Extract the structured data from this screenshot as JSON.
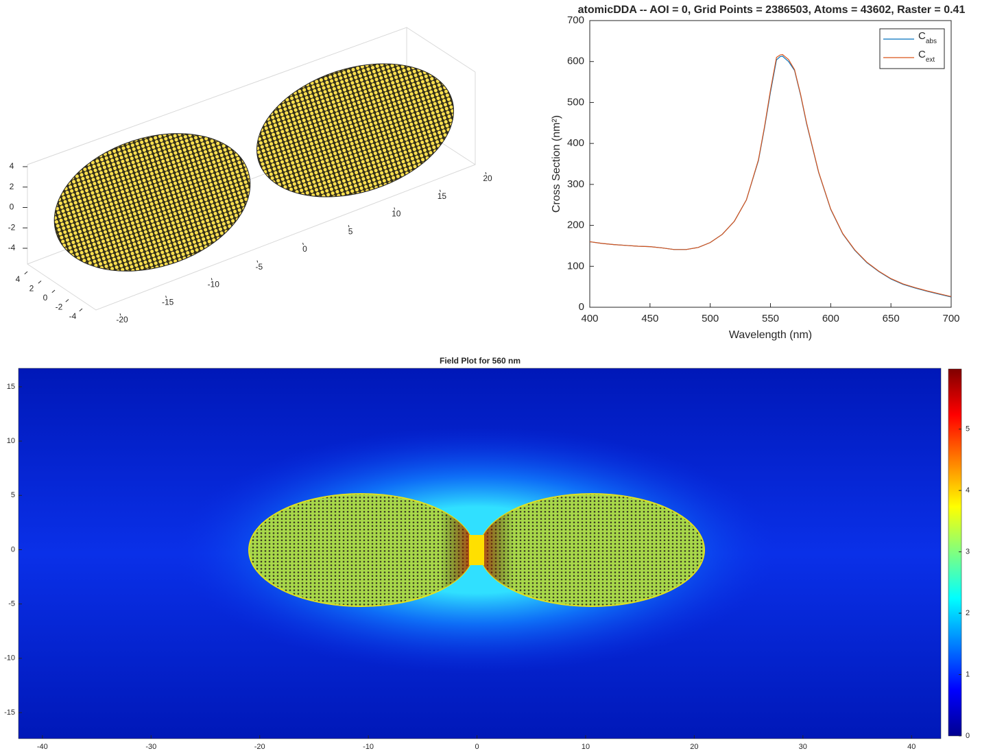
{
  "chart_data": [
    {
      "type": "scatter3d",
      "color": "#ffe14d",
      "xlim": [
        -20,
        20
      ],
      "xticks": [
        -20,
        -15,
        -10,
        -5,
        0,
        5,
        10,
        15,
        20
      ],
      "ylim": [
        -4,
        4
      ],
      "yticks": [
        -4,
        -2,
        0,
        2,
        4
      ],
      "zlim": [
        -4,
        4
      ],
      "zticks": [
        -4,
        -2,
        0,
        2,
        4
      ]
    },
    {
      "type": "line",
      "title": "atomicDDA  -- AOI = 0, Grid Points = 2386503, Atoms = 43602, Raster = 0.41",
      "x_label": "Wavelength (nm)",
      "y_label": "Cross Section (nm²)",
      "x": [
        400,
        410,
        420,
        430,
        440,
        450,
        460,
        470,
        480,
        490,
        500,
        510,
        520,
        530,
        540,
        545,
        550,
        555,
        558,
        560,
        565,
        570,
        575,
        580,
        590,
        600,
        610,
        620,
        630,
        640,
        650,
        660,
        670,
        680,
        690,
        700
      ],
      "series": [
        {
          "name": "Cabs",
          "color": "#0072bd",
          "values": [
            160,
            156,
            153,
            151,
            149,
            148,
            145,
            141,
            141,
            146,
            158,
            178,
            210,
            262,
            358,
            437,
            525,
            604,
            612,
            613,
            600,
            578,
            518,
            448,
            329,
            239,
            179,
            139,
            109,
            87,
            69,
            56,
            47,
            39,
            32,
            25
          ]
        },
        {
          "name": "Cext",
          "color": "#d95319",
          "values": [
            160,
            156,
            153,
            151,
            149,
            148,
            145,
            141,
            141,
            146,
            158,
            178,
            210,
            262,
            360,
            440,
            530,
            610,
            616,
            617,
            605,
            580,
            520,
            450,
            330,
            240,
            180,
            140,
            110,
            88,
            70,
            57,
            48,
            40,
            33,
            26
          ]
        }
      ],
      "xlim": [
        400,
        700
      ],
      "xticks": [
        400,
        450,
        500,
        550,
        600,
        650,
        700
      ],
      "ylim": [
        0,
        700
      ],
      "yticks": [
        0,
        100,
        200,
        300,
        400,
        500,
        600,
        700
      ],
      "legend": "upper right"
    },
    {
      "type": "heatmap",
      "title": "Field Plot for 560 nm",
      "colormap": "jet",
      "xlim": [
        -42.2,
        42.7
      ],
      "xticks": [
        -40,
        -30,
        -20,
        -10,
        0,
        10,
        20,
        30,
        40
      ],
      "ylim": [
        -17.4,
        16.7
      ],
      "yticks": [
        -15,
        -10,
        -5,
        0,
        5,
        10,
        15
      ],
      "clim": [
        0,
        5.98
      ],
      "cticks": [
        0,
        1,
        2,
        3,
        4,
        5
      ]
    }
  ]
}
